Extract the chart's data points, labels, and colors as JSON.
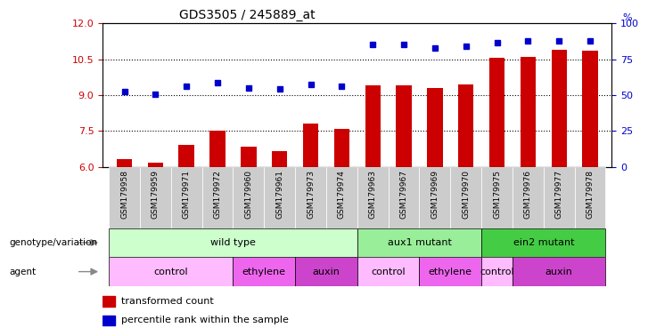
{
  "title": "GDS3505 / 245889_at",
  "samples": [
    "GSM179958",
    "GSM179959",
    "GSM179971",
    "GSM179972",
    "GSM179960",
    "GSM179961",
    "GSM179973",
    "GSM179974",
    "GSM179963",
    "GSM179967",
    "GSM179969",
    "GSM179970",
    "GSM179975",
    "GSM179976",
    "GSM179977",
    "GSM179978"
  ],
  "bar_values": [
    6.3,
    6.15,
    6.9,
    7.5,
    6.85,
    6.65,
    7.8,
    7.6,
    9.4,
    9.4,
    9.3,
    9.45,
    10.55,
    10.6,
    10.9,
    10.85
  ],
  "dot_values": [
    9.15,
    9.05,
    9.35,
    9.5,
    9.3,
    9.25,
    9.45,
    9.38,
    11.1,
    11.1,
    10.95,
    11.05,
    11.2,
    11.28,
    11.28,
    11.28
  ],
  "ylim": [
    6,
    12
  ],
  "yticks_left": [
    6,
    7.5,
    9,
    10.5,
    12
  ],
  "yticks_right": [
    0,
    25,
    50,
    75,
    100
  ],
  "bar_color": "#cc0000",
  "dot_color": "#0000cc",
  "bar_width": 0.5,
  "genotype_groups": [
    {
      "label": "wild type",
      "start": 0,
      "end": 7,
      "color": "#ccffcc"
    },
    {
      "label": "aux1 mutant",
      "start": 8,
      "end": 11,
      "color": "#99ee99"
    },
    {
      "label": "ein2 mutant",
      "start": 12,
      "end": 15,
      "color": "#44cc44"
    }
  ],
  "agent_groups": [
    {
      "label": "control",
      "start": 0,
      "end": 3,
      "color": "#ffbbff"
    },
    {
      "label": "ethylene",
      "start": 4,
      "end": 5,
      "color": "#ee66ee"
    },
    {
      "label": "auxin",
      "start": 6,
      "end": 7,
      "color": "#cc44cc"
    },
    {
      "label": "control",
      "start": 8,
      "end": 9,
      "color": "#ffbbff"
    },
    {
      "label": "ethylene",
      "start": 10,
      "end": 11,
      "color": "#ee66ee"
    },
    {
      "label": "control",
      "start": 12,
      "end": 12,
      "color": "#ffbbff"
    },
    {
      "label": "auxin",
      "start": 13,
      "end": 15,
      "color": "#cc44cc"
    }
  ],
  "legend_items": [
    {
      "label": "transformed count",
      "color": "#cc0000"
    },
    {
      "label": "percentile rank within the sample",
      "color": "#0000cc"
    }
  ],
  "xlabel_color": "#cc0000",
  "ylabel_right_color": "#0000cc",
  "tick_label_bg": "#cccccc"
}
